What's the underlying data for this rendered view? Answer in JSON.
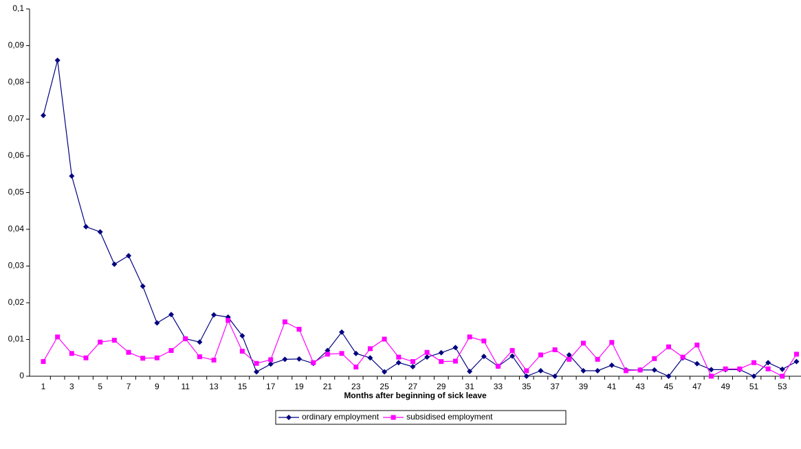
{
  "chart_data": {
    "type": "line",
    "x_label": "Months after beginning of sick leave",
    "categories": [
      1,
      null,
      3,
      null,
      5,
      null,
      7,
      null,
      9,
      null,
      11,
      null,
      13,
      null,
      15,
      null,
      17,
      null,
      19,
      null,
      21,
      null,
      23,
      null,
      25,
      null,
      27,
      null,
      29,
      null,
      31,
      null,
      33,
      null,
      35,
      null,
      37,
      null,
      39,
      null,
      41,
      null,
      43,
      null,
      45,
      null,
      47,
      null,
      49,
      null,
      51,
      null,
      53,
      null
    ],
    "series": [
      {
        "name": "ordinary employment",
        "color": "#000080",
        "marker": "diamond",
        "values": [
          0.071,
          0.086,
          0.0545,
          0.0407,
          0.0393,
          0.0305,
          0.0328,
          0.0245,
          0.0145,
          0.0168,
          0.0102,
          0.0093,
          0.0167,
          0.0161,
          0.011,
          0.0012,
          0.0033,
          0.0046,
          0.0047,
          0.0035,
          0.007,
          0.012,
          0.0062,
          0.005,
          0.0012,
          0.0037,
          0.0026,
          0.0052,
          0.0064,
          0.0078,
          0.0013,
          0.0054,
          0.0027,
          0.0055,
          0,
          0.0015,
          0,
          0.0058,
          0.0015,
          0.0015,
          0.003,
          0.0017,
          0.0017,
          0.0017,
          0,
          0.005,
          0.0034,
          0.0018,
          0.0018,
          0.0018,
          0,
          0.0037,
          0.0019,
          0.004
        ]
      },
      {
        "name": "subsidised employment",
        "color": "#ff00ff",
        "marker": "square",
        "values": [
          0.004,
          0.0107,
          0.0062,
          0.005,
          0.0093,
          0.0098,
          0.0065,
          0.0049,
          0.005,
          0.007,
          0.0102,
          0.0053,
          0.0044,
          0.0152,
          0.0068,
          0.0035,
          0.0045,
          0.0148,
          0.0128,
          0.0037,
          0.006,
          0.0062,
          0.0025,
          0.0075,
          0.0101,
          0.0052,
          0.004,
          0.0065,
          0.004,
          0.0041,
          0.0107,
          0.0096,
          0.0027,
          0.007,
          0.0015,
          0.0058,
          0.0072,
          0.0046,
          0.009,
          0.0046,
          0.0092,
          0.0015,
          0.0017,
          0.0048,
          0.008,
          0.0052,
          0.0085,
          0,
          0.002,
          0.002,
          0.0037,
          0.002,
          0,
          0.006
        ]
      }
    ],
    "ylim": [
      0,
      0.1
    ],
    "yticks": [
      0,
      {
        "value": 0.01,
        "label": "0,01"
      },
      {
        "value": 0.02,
        "label": "0,02"
      },
      {
        "value": 0.03,
        "label": "0,03"
      },
      {
        "value": 0.04,
        "label": "0,04"
      },
      {
        "value": 0.05,
        "label": "0,05"
      },
      {
        "value": 0.06,
        "label": "0,06"
      },
      {
        "value": 0.07,
        "label": "0,07"
      },
      {
        "value": 0.08,
        "label": "0,08"
      },
      {
        "value": 0.09,
        "label": "0,09"
      },
      {
        "value": 0.1,
        "label": "0,1"
      }
    ],
    "legend": "bottom"
  }
}
